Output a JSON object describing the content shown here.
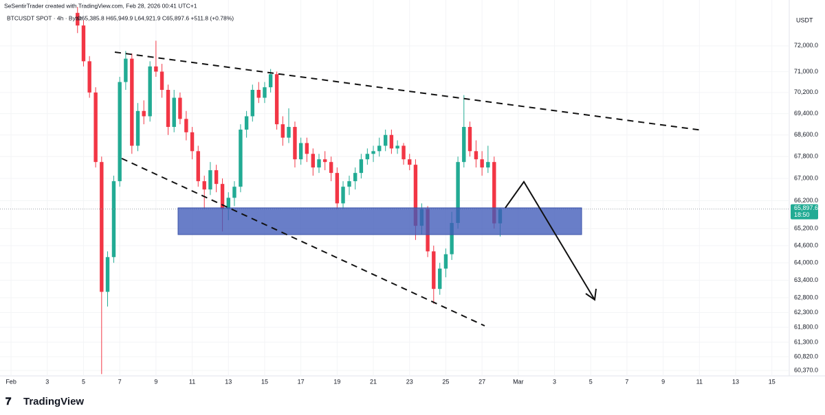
{
  "chart_data": {
    "type": "candlestick",
    "header": "SeSentirTrader created with TradingView.com, Feb 28, 2026 00:41 UTC+1",
    "symbol": "BTCUSDT SPOT · 4h · Bybit",
    "ohlc_text": "O65,385.8 H65,949.9 L64,921.9 C65,897.6 +511.8 (+0.78%)",
    "currency": "USDT",
    "price_label": "65,897.6",
    "countdown": "18:50",
    "brand": "TradingView",
    "up_color": "#22ab94",
    "down_color": "#f23645",
    "log_scale": true,
    "xlim": [
      0.39,
      43.96
    ],
    "ylim": [
      60190,
      73540
    ],
    "xticks": [
      {
        "value": 1,
        "label": "Feb"
      },
      3,
      5,
      7,
      9,
      11,
      13,
      15,
      17,
      19,
      21,
      23,
      25,
      27,
      {
        "value": 29,
        "label": "Mar"
      },
      {
        "value": 31,
        "label": "3"
      },
      {
        "value": 33,
        "label": "5"
      },
      {
        "value": 35,
        "label": "7"
      },
      {
        "value": 37,
        "label": "9"
      },
      {
        "value": 39,
        "label": "11"
      },
      {
        "value": 41,
        "label": "13"
      },
      {
        "value": 43,
        "label": "15"
      }
    ],
    "yticks": [
      {
        "value": 72000,
        "label": "72,000.0"
      },
      {
        "value": 71000,
        "label": "71,000.0"
      },
      {
        "value": 70200,
        "label": "70,200.0"
      },
      {
        "value": 69400,
        "label": "69,400.0"
      },
      {
        "value": 68600,
        "label": "68,600.0"
      },
      {
        "value": 67800,
        "label": "67,800.0"
      },
      {
        "value": 67000,
        "label": "67,000.0"
      },
      {
        "value": 66200,
        "label": "66,200.0"
      },
      {
        "value": 65200,
        "label": "65,200.0"
      },
      {
        "value": 64600,
        "label": "64,600.0"
      },
      {
        "value": 64000,
        "label": "64,000.0"
      },
      {
        "value": 63400,
        "label": "63,400.0"
      },
      {
        "value": 62800,
        "label": "62,800.0"
      },
      {
        "value": 62300,
        "label": "62,300.0"
      },
      {
        "value": 61800,
        "label": "61,800.0"
      },
      {
        "value": 61300,
        "label": "61,300.0"
      },
      {
        "value": 60820,
        "label": "60,820.0"
      },
      {
        "value": 60370,
        "label": "60,370.0"
      }
    ],
    "x": [
      4.67,
      5,
      5.33,
      5.67,
      6,
      6.33,
      6.67,
      7,
      7.33,
      7.67,
      8,
      8.33,
      8.67,
      9,
      9.33,
      9.67,
      10,
      10.33,
      10.67,
      11,
      11.33,
      11.67,
      12,
      12.33,
      12.67,
      13,
      13.33,
      13.67,
      14,
      14.33,
      14.67,
      15,
      15.33,
      15.67,
      16,
      16.33,
      16.67,
      17,
      17.33,
      17.67,
      18,
      18.33,
      18.67,
      19,
      19.33,
      19.67,
      20,
      20.33,
      20.67,
      21,
      21.33,
      21.67,
      22,
      22.33,
      22.67,
      23,
      23.33,
      23.67,
      24,
      24.33,
      24.67,
      25,
      25.33,
      25.67,
      26,
      26.33,
      26.67,
      27,
      27.33,
      27.67,
      28
    ],
    "ohlc": [
      [
        73300,
        73540,
        72500,
        72800
      ],
      [
        72800,
        73000,
        71200,
        71400
      ],
      [
        71400,
        71600,
        70000,
        70200
      ],
      [
        70200,
        70400,
        67400,
        67600
      ],
      [
        67600,
        67800,
        60250,
        63000
      ],
      [
        63000,
        64400,
        62500,
        64200
      ],
      [
        64200,
        67100,
        64000,
        66900
      ],
      [
        66900,
        70800,
        66700,
        70600
      ],
      [
        70600,
        71800,
        70300,
        71500
      ],
      [
        71500,
        71700,
        67900,
        68200
      ],
      [
        68200,
        69800,
        68000,
        69500
      ],
      [
        69500,
        69900,
        69000,
        69300
      ],
      [
        69300,
        71400,
        69100,
        71200
      ],
      [
        71200,
        72200,
        70800,
        71000
      ],
      [
        71000,
        71300,
        70000,
        70300
      ],
      [
        70300,
        70500,
        68600,
        68900
      ],
      [
        68900,
        70300,
        68700,
        70000
      ],
      [
        70000,
        70200,
        69000,
        69200
      ],
      [
        69200,
        69500,
        68400,
        68700
      ],
      [
        68700,
        68900,
        67700,
        68000
      ],
      [
        68000,
        68200,
        66700,
        66900
      ],
      [
        66900,
        67100,
        65900,
        66600
      ],
      [
        66600,
        67600,
        66400,
        67300
      ],
      [
        67300,
        67500,
        66500,
        66800
      ],
      [
        66800,
        67000,
        65100,
        65900
      ],
      [
        65900,
        66500,
        65500,
        66300
      ],
      [
        66300,
        66900,
        66000,
        66700
      ],
      [
        66700,
        69000,
        66500,
        68800
      ],
      [
        68800,
        69500,
        68500,
        69300
      ],
      [
        69300,
        70500,
        69100,
        70300
      ],
      [
        70300,
        70600,
        69800,
        70000
      ],
      [
        70000,
        70600,
        69800,
        70400
      ],
      [
        70400,
        71100,
        70200,
        70900
      ],
      [
        70900,
        71000,
        68800,
        69000
      ],
      [
        69000,
        69300,
        68200,
        68500
      ],
      [
        68500,
        69600,
        68300,
        68900
      ],
      [
        68900,
        69100,
        67400,
        67700
      ],
      [
        67700,
        68500,
        67500,
        68300
      ],
      [
        68300,
        68500,
        67600,
        67900
      ],
      [
        67900,
        68100,
        67100,
        67400
      ],
      [
        67400,
        67900,
        67200,
        67700
      ],
      [
        67700,
        68000,
        67300,
        67600
      ],
      [
        67600,
        67800,
        66900,
        67200
      ],
      [
        67200,
        67400,
        65900,
        66100
      ],
      [
        66100,
        66900,
        65900,
        66700
      ],
      [
        66700,
        67100,
        66400,
        66900
      ],
      [
        66900,
        67400,
        66600,
        67200
      ],
      [
        67200,
        67900,
        67000,
        67700
      ],
      [
        67700,
        68100,
        67500,
        67900
      ],
      [
        67900,
        68200,
        67600,
        68000
      ],
      [
        68000,
        68500,
        67800,
        68200
      ],
      [
        68200,
        68800,
        68000,
        68600
      ],
      [
        68600,
        68800,
        67900,
        68100
      ],
      [
        68100,
        68400,
        67900,
        68200
      ],
      [
        68200,
        68300,
        67500,
        67700
      ],
      [
        67700,
        67900,
        67300,
        67500
      ],
      [
        67500,
        67700,
        64800,
        65300
      ],
      [
        65300,
        66100,
        65000,
        65900
      ],
      [
        65900,
        66000,
        64200,
        64400
      ],
      [
        64400,
        64600,
        62600,
        63100
      ],
      [
        63100,
        64000,
        62900,
        63800
      ],
      [
        63800,
        64500,
        63500,
        64300
      ],
      [
        64300,
        65800,
        64100,
        65400
      ],
      [
        65400,
        67800,
        65200,
        67600
      ],
      [
        67600,
        70100,
        67400,
        68900
      ],
      [
        68900,
        69100,
        67800,
        68000
      ],
      [
        68000,
        68400,
        67400,
        67700
      ],
      [
        67700,
        68000,
        67100,
        67400
      ],
      [
        67400,
        68200,
        67200,
        67600
      ],
      [
        67600,
        67800,
        65200,
        65385.8
      ],
      [
        65385.8,
        65949.9,
        64921.9,
        65897.6
      ]
    ]
  }
}
